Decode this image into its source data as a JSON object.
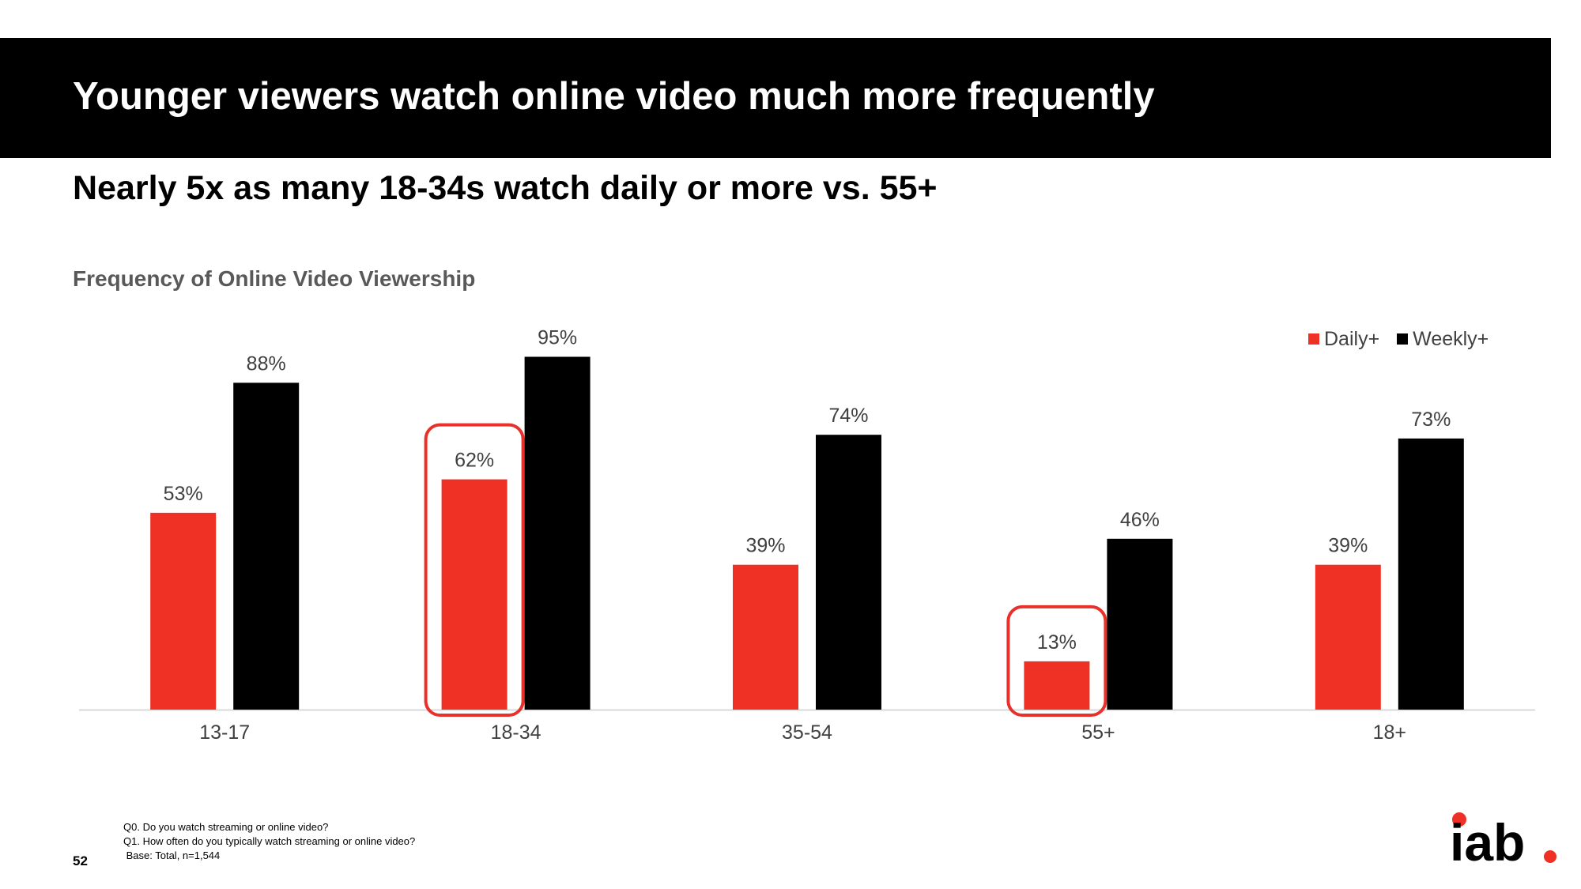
{
  "slide": {
    "title": "Younger viewers watch online video much more frequently",
    "subtitle": "Nearly 5x as many 18-34s watch daily or more vs. 55+",
    "page_number": "52",
    "footnotes": [
      "Q0. Do you watch streaming or online video?",
      "Q1. How often do you typically watch streaming or online video?",
      " Base: Total, n=1,544"
    ],
    "logo_text": "iab"
  },
  "chart_data": {
    "type": "bar",
    "title": "Frequency of Online Video Viewership",
    "categories": [
      "13-17",
      "18-34",
      "35-54",
      "55+",
      "18+"
    ],
    "series": [
      {
        "name": "Daily+",
        "values": [
          53,
          62,
          39,
          13,
          39
        ],
        "color": "#EE3124"
      },
      {
        "name": "Weekly+",
        "values": [
          88,
          95,
          74,
          46,
          73
        ],
        "color": "#000000"
      }
    ],
    "data_labels": [
      [
        "53%",
        "62%",
        "39%",
        "13%",
        "39%"
      ],
      [
        "88%",
        "95%",
        "74%",
        "46%",
        "73%"
      ]
    ],
    "highlighted": [
      {
        "series": "Daily+",
        "category": "18-34"
      },
      {
        "series": "Daily+",
        "category": "55+"
      }
    ],
    "highlight_color": "#E8312A",
    "ylim": [
      0,
      100
    ],
    "grid": false,
    "legend_position": "top-right"
  }
}
